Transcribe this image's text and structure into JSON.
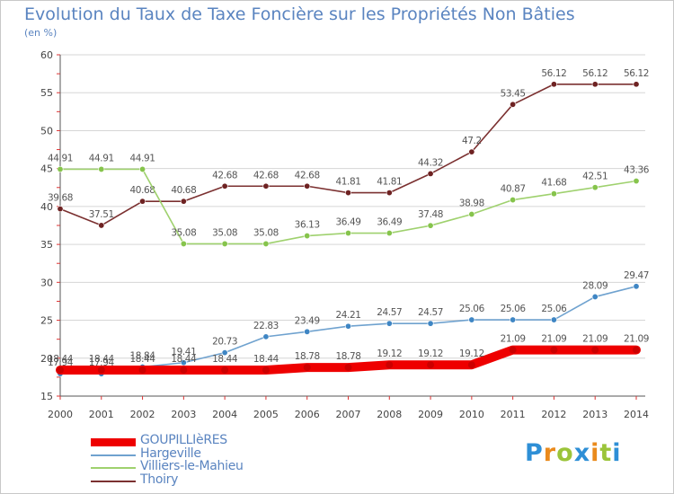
{
  "chart_data": {
    "type": "line",
    "title": "Evolution du Taux de Taxe Foncière sur les Propriétés Non Bâties",
    "ylabel": "(en %)",
    "ylim": [
      15,
      60
    ],
    "yticks": [
      15,
      20,
      25,
      30,
      35,
      40,
      45,
      50,
      55,
      60
    ],
    "x": [
      "2000",
      "2001",
      "2002",
      "2003",
      "2004",
      "2005",
      "2006",
      "2007",
      "2008",
      "2009",
      "2010",
      "2011",
      "2012",
      "2013",
      "2014"
    ],
    "series": [
      {
        "name": "Thoiry",
        "color": "#7b3030",
        "marker": "#6e2222",
        "values": [
          39.68,
          37.51,
          40.68,
          40.68,
          42.68,
          42.68,
          42.68,
          41.81,
          41.81,
          44.32,
          47.2,
          53.45,
          56.12,
          56.12,
          56.12
        ],
        "labels": [
          "39.68",
          "37.51",
          "40.68",
          "40.68",
          "42.68",
          "42.68",
          "42.68",
          "41.81",
          "41.81",
          "44.32",
          "47.2",
          "53.45",
          "56.12",
          "56.12",
          "56.12"
        ]
      },
      {
        "name": "Villiers-le-Mahieu",
        "color": "#9fd16e",
        "marker": "#86c44c",
        "values": [
          44.91,
          44.91,
          44.91,
          35.08,
          35.08,
          35.08,
          36.13,
          36.49,
          36.49,
          37.48,
          38.98,
          40.87,
          41.68,
          42.51,
          43.36
        ],
        "labels": [
          "44.91",
          "44.91",
          "44.91",
          "35.08",
          "35.08",
          "35.08",
          "36.13",
          "36.49",
          "36.49",
          "37.48",
          "38.98",
          "40.87",
          "41.68",
          "42.51",
          "43.36"
        ]
      },
      {
        "name": "Hargeville",
        "color": "#6fa2cf",
        "marker": "#3f86c4",
        "values": [
          17.94,
          17.94,
          18.84,
          19.41,
          20.73,
          22.83,
          23.49,
          24.21,
          24.57,
          24.57,
          25.06,
          25.06,
          25.06,
          28.09,
          29.47
        ],
        "labels": [
          "17.94",
          "17.94",
          "18.84",
          "19.41",
          "20.73",
          "22.83",
          "23.49",
          "24.21",
          "24.57",
          "24.57",
          "25.06",
          "25.06",
          "25.06",
          "28.09",
          "29.47"
        ]
      },
      {
        "name": "GOUPILLIèRES",
        "color": "#ee0000",
        "marker": "#cc0000",
        "values": [
          18.44,
          18.44,
          18.44,
          18.44,
          18.44,
          18.44,
          18.78,
          18.78,
          19.12,
          19.12,
          19.12,
          21.09,
          21.09,
          21.09,
          21.09
        ],
        "labels": [
          "18.44",
          "18.44",
          "18.44",
          "18.44",
          "18.44",
          "18.44",
          "18.78",
          "18.78",
          "19.12",
          "19.12",
          "19.12",
          "21.09",
          "21.09",
          "21.09",
          "21.09"
        ]
      }
    ],
    "legend": [
      "GOUPILLIèRES",
      "Hargeville",
      "Villiers-le-Mahieu",
      "Thoiry"
    ],
    "legend_position": "bottom-left"
  },
  "logo": {
    "letters": [
      "P",
      "r",
      "o",
      "x",
      "i",
      "t",
      "i"
    ],
    "colors": [
      "#2e8fd6",
      "#ea8a1c",
      "#9bc43a",
      "#2e8fd6",
      "#ea8a1c",
      "#9bc43a",
      "#2e8fd6"
    ]
  }
}
